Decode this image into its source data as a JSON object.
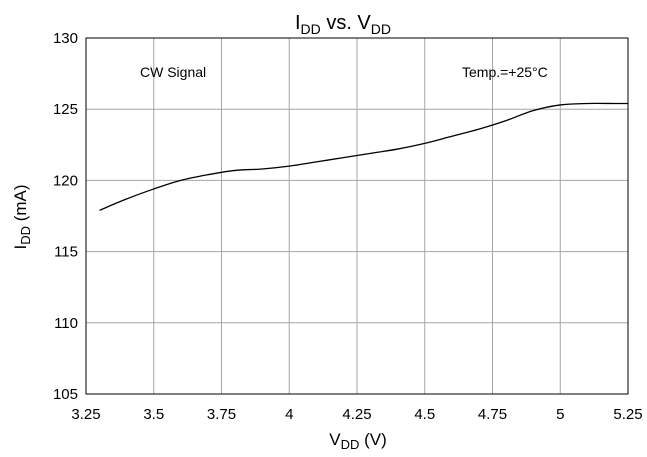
{
  "chart_data": {
    "type": "line",
    "title": {
      "main": "I",
      "sub1": "DD",
      "mid": " vs. V",
      "sub2": "DD"
    },
    "xlabel": {
      "main": "V",
      "sub": "DD",
      "rest": " (V)"
    },
    "ylabel": {
      "main": "I",
      "sub": "DD",
      "rest": " (mA)"
    },
    "xlim": [
      3.25,
      5.25
    ],
    "ylim": [
      105,
      130
    ],
    "xticks": [
      "3.25",
      "3.5",
      "3.75",
      "4",
      "4.25",
      "4.5",
      "4.75",
      "5",
      "5.25"
    ],
    "yticks": [
      "105",
      "110",
      "115",
      "120",
      "125",
      "130"
    ],
    "grid": true,
    "annotations": {
      "signal": "CW Signal",
      "temperature": "Temp.=+25°C"
    },
    "series": [
      {
        "color": "#000000",
        "x": [
          3.3,
          3.4,
          3.5,
          3.6,
          3.7,
          3.8,
          3.9,
          4.0,
          4.1,
          4.2,
          4.3,
          4.4,
          4.5,
          4.6,
          4.7,
          4.8,
          4.9,
          5.0,
          5.1,
          5.2,
          5.25
        ],
        "y": [
          117.9,
          118.7,
          119.4,
          120.0,
          120.4,
          120.7,
          120.8,
          121.0,
          121.3,
          121.6,
          121.9,
          122.2,
          122.6,
          123.1,
          123.6,
          124.2,
          124.9,
          125.3,
          125.4,
          125.4,
          125.4
        ]
      }
    ]
  }
}
